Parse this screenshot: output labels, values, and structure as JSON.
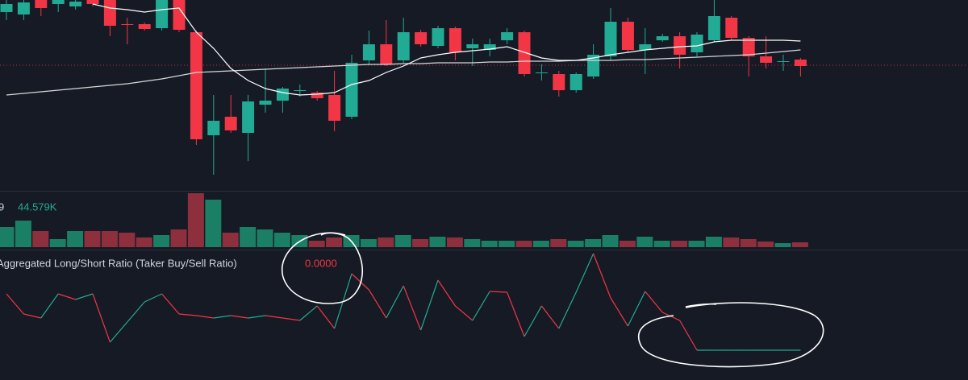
{
  "chart_data": {
    "type": "candlestick",
    "candles": {
      "open": [
        225,
        222,
        240,
        235,
        232,
        240,
        240,
        210,
        210,
        205,
        240,
        200,
        72,
        95,
        75,
        110,
        115,
        128,
        125,
        122,
        95,
        165,
        185,
        165,
        200,
        183,
        205,
        180,
        178,
        190,
        200,
        150,
        148,
        128,
        145,
        170,
        213,
        178,
        190,
        195,
        175,
        190,
        218,
        193,
        170,
        164,
        166
      ],
      "high": [
        240,
        240,
        240,
        240,
        240,
        240,
        240,
        218,
        212,
        240,
        240,
        202,
        122,
        122,
        122,
        155,
        132,
        135,
        127,
        152,
        172,
        202,
        215,
        218,
        203,
        208,
        207,
        192,
        192,
        205,
        202,
        160,
        152,
        150,
        185,
        230,
        218,
        205,
        198,
        200,
        200,
        240,
        220,
        195,
        195,
        172,
        168
      ],
      "low": [
        215,
        215,
        220,
        225,
        228,
        232,
        195,
        185,
        202,
        202,
        200,
        60,
        23,
        75,
        40,
        100,
        100,
        120,
        115,
        77,
        92,
        160,
        158,
        162,
        182,
        180,
        165,
        158,
        170,
        185,
        145,
        140,
        120,
        125,
        142,
        165,
        175,
        148,
        188,
        155,
        170,
        188,
        190,
        145,
        155,
        152,
        145
      ],
      "close": [
        235,
        237,
        230,
        240,
        238,
        235,
        208,
        209,
        204,
        240,
        203,
        67,
        90,
        78,
        114,
        115,
        130,
        128,
        118,
        90,
        162,
        185,
        160,
        200,
        185,
        205,
        175,
        185,
        185,
        200,
        148,
        150,
        128,
        148,
        172,
        213,
        178,
        185,
        195,
        172,
        197,
        220,
        193,
        170,
        162,
        164,
        158
      ]
    },
    "ylim": [
      0,
      240
    ],
    "up_color": "#22ab94",
    "down_color": "#f23645",
    "ma_series": [
      {
        "color": "#d8d8d8",
        "values": [
          122,
          124,
          126,
          128,
          130,
          132,
          134,
          136,
          139,
          142,
          146,
          150,
          151,
          152,
          153,
          154,
          155,
          156,
          157,
          158,
          159,
          160,
          160,
          161,
          161,
          162,
          162,
          162,
          163,
          163,
          164,
          164,
          164,
          165,
          165,
          165,
          166,
          166,
          167,
          168,
          169,
          170,
          171,
          172,
          174,
          176,
          178
        ]
      },
      {
        "color": "#ffffff",
        "values": [
          null,
          null,
          null,
          null,
          null,
          235,
          230,
          228,
          225,
          228,
          230,
          200,
          180,
          155,
          140,
          130,
          125,
          122,
          123,
          125,
          135,
          140,
          150,
          158,
          168,
          172,
          175,
          177,
          179,
          182,
          175,
          168,
          165,
          165,
          168,
          172,
          175,
          178,
          180,
          182,
          183,
          188,
          190,
          190,
          190,
          190,
          189
        ]
      }
    ],
    "last_price": 159,
    "volume": {
      "prefix": "9",
      "label": "44.579K",
      "values": [
        25,
        33,
        20,
        10,
        20,
        20,
        20,
        18,
        12,
        15,
        22,
        67,
        59,
        18,
        25,
        22,
        18,
        15,
        8,
        12,
        15,
        10,
        12,
        15,
        10,
        13,
        12,
        10,
        8,
        8,
        8,
        8,
        10,
        8,
        10,
        15,
        8,
        13,
        8,
        8,
        8,
        13,
        12,
        10,
        7,
        5,
        6
      ],
      "ylim": [
        0,
        70
      ],
      "up_color": "#1a7f64",
      "down_color": "#8e2f3e"
    },
    "ratio": {
      "title": "Aggregated Long/Short Ratio (Taker Buy/Sell Ratio)",
      "value_label": "0.0000",
      "values": [
        95,
        70,
        65,
        95,
        88,
        95,
        35,
        60,
        85,
        95,
        70,
        68,
        65,
        68,
        65,
        68,
        65,
        62,
        80,
        52,
        120,
        100,
        65,
        105,
        50,
        112,
        80,
        62,
        98,
        97,
        42,
        80,
        52,
        97,
        145,
        90,
        55,
        98,
        72,
        62,
        25,
        25,
        25,
        25,
        25,
        25,
        25
      ],
      "ylim": [
        0,
        150
      ],
      "up_color": "#22ab94",
      "down_color": "#f23645"
    }
  }
}
